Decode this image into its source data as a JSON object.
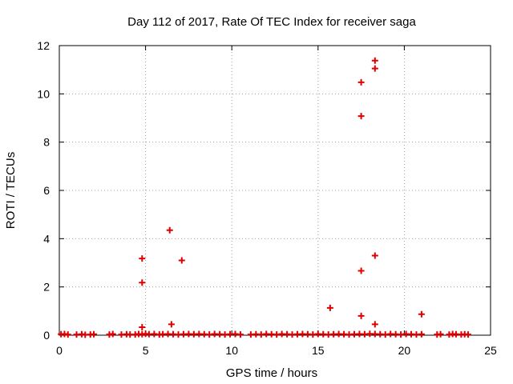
{
  "chart_data": {
    "type": "scatter",
    "title": "Day 112 of 2017, Rate Of TEC Index for receiver saga",
    "xlabel": "GPS time / hours",
    "ylabel": "ROTI / TECUs",
    "xlim": [
      0,
      25
    ],
    "ylim": [
      0,
      12
    ],
    "xticks": [
      0,
      5,
      10,
      15,
      20,
      25
    ],
    "yticks": [
      0,
      2,
      4,
      6,
      8,
      10,
      12
    ],
    "grid": true,
    "marker": "plus",
    "color": "#e00000",
    "series": [
      {
        "points": [
          [
            0.1,
            0.04
          ],
          [
            0.3,
            0.05
          ],
          [
            0.5,
            0.03
          ],
          [
            1.0,
            0.03
          ],
          [
            1.3,
            0.04
          ],
          [
            1.5,
            0.02
          ],
          [
            1.8,
            0.03
          ],
          [
            2.0,
            0.04
          ],
          [
            2.9,
            0.03
          ],
          [
            3.1,
            0.05
          ],
          [
            3.6,
            0.03
          ],
          [
            3.9,
            0.04
          ],
          [
            4.1,
            0.03
          ],
          [
            4.4,
            0.03
          ],
          [
            4.6,
            0.05
          ],
          [
            4.8,
            0.04
          ],
          [
            5.0,
            0.06
          ],
          [
            5.2,
            0.04
          ],
          [
            5.5,
            0.05
          ],
          [
            5.8,
            0.03
          ],
          [
            6.0,
            0.04
          ],
          [
            6.3,
            0.05
          ],
          [
            6.6,
            0.04
          ],
          [
            6.9,
            0.03
          ],
          [
            7.2,
            0.04
          ],
          [
            7.5,
            0.05
          ],
          [
            7.8,
            0.04
          ],
          [
            8.1,
            0.05
          ],
          [
            8.4,
            0.04
          ],
          [
            8.7,
            0.03
          ],
          [
            9.0,
            0.05
          ],
          [
            9.3,
            0.04
          ],
          [
            9.6,
            0.03
          ],
          [
            9.9,
            0.04
          ],
          [
            10.2,
            0.05
          ],
          [
            10.5,
            0.03
          ],
          [
            11.1,
            0.03
          ],
          [
            11.4,
            0.04
          ],
          [
            11.7,
            0.03
          ],
          [
            12.0,
            0.05
          ],
          [
            12.3,
            0.04
          ],
          [
            12.6,
            0.03
          ],
          [
            12.9,
            0.05
          ],
          [
            13.2,
            0.04
          ],
          [
            13.5,
            0.03
          ],
          [
            13.8,
            0.04
          ],
          [
            14.1,
            0.05
          ],
          [
            14.4,
            0.04
          ],
          [
            14.7,
            0.03
          ],
          [
            15.0,
            0.05
          ],
          [
            15.3,
            0.04
          ],
          [
            15.6,
            0.03
          ],
          [
            15.9,
            0.04
          ],
          [
            16.2,
            0.05
          ],
          [
            16.5,
            0.04
          ],
          [
            16.8,
            0.03
          ],
          [
            17.1,
            0.04
          ],
          [
            17.4,
            0.05
          ],
          [
            17.7,
            0.04
          ],
          [
            18.0,
            0.06
          ],
          [
            18.3,
            0.05
          ],
          [
            18.6,
            0.04
          ],
          [
            18.9,
            0.03
          ],
          [
            19.2,
            0.05
          ],
          [
            19.5,
            0.04
          ],
          [
            19.8,
            0.03
          ],
          [
            20.1,
            0.05
          ],
          [
            20.4,
            0.04
          ],
          [
            20.7,
            0.03
          ],
          [
            21.0,
            0.04
          ],
          [
            21.9,
            0.03
          ],
          [
            22.1,
            0.04
          ],
          [
            22.6,
            0.03
          ],
          [
            22.8,
            0.05
          ],
          [
            23.0,
            0.04
          ],
          [
            23.3,
            0.03
          ],
          [
            23.5,
            0.04
          ],
          [
            23.7,
            0.03
          ],
          [
            4.8,
            3.18
          ],
          [
            4.8,
            2.18
          ],
          [
            4.8,
            0.33
          ],
          [
            6.4,
            4.35
          ],
          [
            6.5,
            0.45
          ],
          [
            7.1,
            3.1
          ],
          [
            15.7,
            1.13
          ],
          [
            17.5,
            10.48
          ],
          [
            17.5,
            9.08
          ],
          [
            17.5,
            2.67
          ],
          [
            17.5,
            0.8
          ],
          [
            18.3,
            11.38
          ],
          [
            18.3,
            11.05
          ],
          [
            18.3,
            3.3
          ],
          [
            18.3,
            0.45
          ],
          [
            21.0,
            0.87
          ]
        ]
      }
    ]
  }
}
